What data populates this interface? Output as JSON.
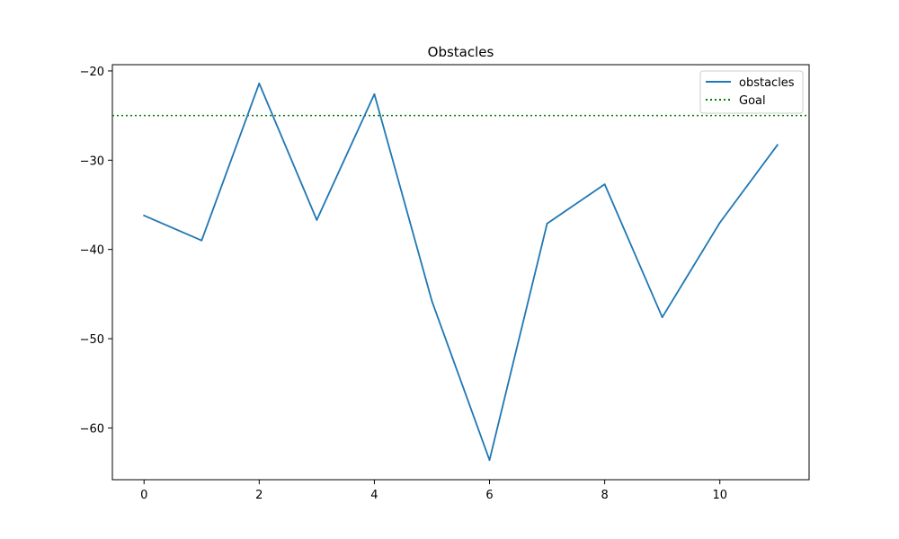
{
  "chart_data": {
    "type": "line",
    "title": "Obstacles",
    "xlabel": "",
    "ylabel": "",
    "x": [
      0,
      1,
      2,
      3,
      4,
      5,
      6,
      7,
      8,
      9,
      10,
      11
    ],
    "series": [
      {
        "name": "obstacles",
        "values": [
          -36.2,
          -39.0,
          -21.4,
          -36.7,
          -22.6,
          -45.8,
          -63.6,
          -37.1,
          -32.7,
          -47.6,
          -37.0,
          -28.3
        ],
        "color": "#1f77b4",
        "style": "solid"
      }
    ],
    "reference_lines": [
      {
        "name": "Goal",
        "y": -25.0,
        "color": "#008000",
        "style": "dotted"
      }
    ],
    "xlim": [
      -0.55,
      11.55
    ],
    "ylim": [
      -65.8,
      -19.3
    ],
    "xticks": [
      0,
      2,
      4,
      6,
      8,
      10
    ],
    "yticks": [
      -20,
      -30,
      -40,
      -50,
      -60
    ],
    "grid": false,
    "legend_position": "top-right"
  }
}
